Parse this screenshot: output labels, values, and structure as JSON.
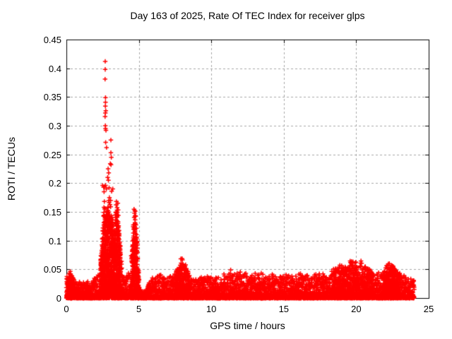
{
  "page": {
    "background": "#ffffff",
    "text_color": "#000000"
  },
  "chart_data": {
    "type": "scatter",
    "title": "Day 163 of 2025, Rate Of TEC Index for receiver glps",
    "xlabel": "GPS time / hours",
    "ylabel": "ROTI / TECUs",
    "xlim": [
      0,
      25
    ],
    "ylim": [
      0,
      0.45
    ],
    "xticks": [
      0,
      5,
      10,
      15,
      20,
      25
    ],
    "xtick_labels": [
      "0",
      "5",
      "10",
      "15",
      "20",
      "25"
    ],
    "yticks": [
      0,
      0.05,
      0.1,
      0.15,
      0.2,
      0.25,
      0.3,
      0.35,
      0.4,
      0.45
    ],
    "ytick_labels": [
      "0",
      "0.05",
      "0.1",
      "0.15",
      "0.2",
      "0.25",
      "0.3",
      "0.35",
      "0.4",
      "0.45"
    ],
    "grid": true,
    "legend": "none",
    "marker": "plus",
    "marker_color": "#ff0000",
    "grid_color": "#a6a6a6",
    "axis_color": "#000000",
    "series_description": "Dense band of ROTI values 0-0.04 TECUs across 0-24h GPS time; strong scintillation spike near 2.7-3.6h peaking at 0.412; secondary narrow spike near 4.7h peaking at 0.155; minor bump near 8h (~0.066); mildly elevated activity 18.5-21h and 22-23h (~0.05-0.065); quiet dip near 5.2-5.6h; data ends at 24h",
    "envelope_max_by_hour": [
      [
        0.0,
        0.035
      ],
      [
        0.25,
        0.045
      ],
      [
        0.5,
        0.032
      ],
      [
        1.0,
        0.026
      ],
      [
        1.5,
        0.028
      ],
      [
        2.0,
        0.035
      ],
      [
        2.3,
        0.05
      ],
      [
        2.45,
        0.09
      ],
      [
        2.55,
        0.14
      ],
      [
        2.7,
        0.16
      ],
      [
        2.85,
        0.15
      ],
      [
        3.0,
        0.16
      ],
      [
        3.15,
        0.135
      ],
      [
        3.3,
        0.12
      ],
      [
        3.45,
        0.155
      ],
      [
        3.55,
        0.16
      ],
      [
        3.7,
        0.09
      ],
      [
        3.85,
        0.065
      ],
      [
        4.0,
        0.045
      ],
      [
        4.2,
        0.04
      ],
      [
        4.4,
        0.055
      ],
      [
        4.55,
        0.09
      ],
      [
        4.65,
        0.145
      ],
      [
        4.75,
        0.155
      ],
      [
        4.85,
        0.12
      ],
      [
        4.95,
        0.06
      ],
      [
        5.05,
        0.025
      ],
      [
        5.2,
        0.012
      ],
      [
        5.5,
        0.012
      ],
      [
        5.65,
        0.025
      ],
      [
        5.9,
        0.032
      ],
      [
        6.2,
        0.04
      ],
      [
        6.5,
        0.038
      ],
      [
        7.0,
        0.035
      ],
      [
        7.4,
        0.04
      ],
      [
        7.7,
        0.055
      ],
      [
        7.95,
        0.066
      ],
      [
        8.15,
        0.058
      ],
      [
        8.4,
        0.045
      ],
      [
        8.7,
        0.032
      ],
      [
        9.0,
        0.032
      ],
      [
        9.5,
        0.035
      ],
      [
        10.0,
        0.04
      ],
      [
        10.5,
        0.036
      ],
      [
        11.0,
        0.042
      ],
      [
        11.3,
        0.048
      ],
      [
        11.6,
        0.04
      ],
      [
        12.0,
        0.044
      ],
      [
        12.5,
        0.04
      ],
      [
        13.0,
        0.045
      ],
      [
        13.5,
        0.04
      ],
      [
        14.0,
        0.044
      ],
      [
        14.5,
        0.04
      ],
      [
        15.0,
        0.04
      ],
      [
        15.5,
        0.038
      ],
      [
        16.0,
        0.042
      ],
      [
        16.5,
        0.04
      ],
      [
        17.0,
        0.044
      ],
      [
        17.5,
        0.042
      ],
      [
        18.0,
        0.04
      ],
      [
        18.5,
        0.05
      ],
      [
        18.9,
        0.058
      ],
      [
        19.2,
        0.05
      ],
      [
        19.6,
        0.065
      ],
      [
        20.0,
        0.058
      ],
      [
        20.3,
        0.063
      ],
      [
        20.7,
        0.052
      ],
      [
        21.0,
        0.046
      ],
      [
        21.5,
        0.04
      ],
      [
        22.0,
        0.05
      ],
      [
        22.4,
        0.065
      ],
      [
        22.7,
        0.052
      ],
      [
        23.0,
        0.046
      ],
      [
        23.5,
        0.04
      ],
      [
        24.0,
        0.035
      ]
    ],
    "outlier_points": [
      [
        2.68,
        0.412
      ],
      [
        2.68,
        0.398
      ],
      [
        2.67,
        0.381
      ],
      [
        2.7,
        0.349
      ],
      [
        2.7,
        0.341
      ],
      [
        2.69,
        0.334
      ],
      [
        2.72,
        0.326
      ],
      [
        2.69,
        0.322
      ],
      [
        2.67,
        0.316
      ],
      [
        2.69,
        0.3
      ],
      [
        2.7,
        0.295
      ],
      [
        2.73,
        0.292
      ],
      [
        2.71,
        0.271
      ],
      [
        2.77,
        0.262
      ],
      [
        3.07,
        0.275
      ],
      [
        3.07,
        0.253
      ],
      [
        3.1,
        0.245
      ],
      [
        3.03,
        0.234
      ],
      [
        3.08,
        0.232
      ],
      [
        2.88,
        0.225
      ],
      [
        2.92,
        0.218
      ],
      [
        2.85,
        0.21
      ],
      [
        2.9,
        0.205
      ],
      [
        2.5,
        0.196
      ],
      [
        2.57,
        0.193
      ],
      [
        2.63,
        0.194
      ],
      [
        2.7,
        0.196
      ],
      [
        2.76,
        0.19
      ],
      [
        2.95,
        0.192
      ],
      [
        3.2,
        0.19
      ],
      [
        3.12,
        0.186
      ],
      [
        2.6,
        0.185
      ],
      [
        2.97,
        0.175
      ],
      [
        3.05,
        0.17
      ],
      [
        2.62,
        0.168
      ],
      [
        3.45,
        0.168
      ],
      [
        3.55,
        0.165
      ],
      [
        4.72,
        0.152
      ],
      [
        4.7,
        0.148
      ],
      [
        4.74,
        0.143
      ]
    ],
    "dense_clusters": [
      {
        "t0": 0.02,
        "t1": 0.5,
        "count": 150,
        "spread": 2.0,
        "col_step": 0
      },
      {
        "t0": 2.35,
        "t1": 3.75,
        "count": 900,
        "spread": 1.25,
        "col_step": 0.07
      },
      {
        "t0": 4.5,
        "t1": 5.0,
        "count": 280,
        "spread": 1.25,
        "col_step": 0.06
      },
      {
        "t0": 7.5,
        "t1": 8.5,
        "count": 220,
        "spread": 1.6,
        "col_step": 0
      },
      {
        "t0": 18.4,
        "t1": 21.1,
        "count": 350,
        "spread": 1.8,
        "col_step": 0
      },
      {
        "t0": 21.9,
        "t1": 23.0,
        "count": 250,
        "spread": 1.8,
        "col_step": 0
      }
    ],
    "baseline_points": 5200,
    "baseline_shape": 2.8,
    "data_end_hour": 24,
    "seed": 163
  }
}
